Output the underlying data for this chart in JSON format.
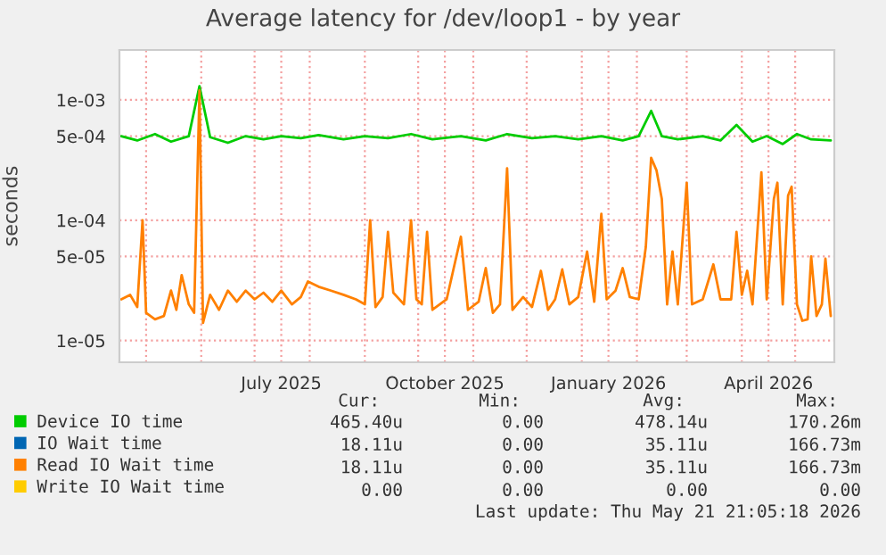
{
  "chart_data": {
    "type": "line",
    "title": "Average latency for /dev/loop1 - by year",
    "ylabel": "seconds",
    "log": "y",
    "grid": true,
    "legend": "bottom",
    "line_style": "solid",
    "marker": "none",
    "xlim": [
      "2025-04-16",
      "2026-05-23"
    ],
    "xticks": [
      {
        "value": "2025-05-01",
        "label": null
      },
      {
        "value": "2025-06-01",
        "label": null
      },
      {
        "value": "2025-07-01",
        "label": null
      },
      {
        "value": "2025-08-01",
        "label": null
      },
      {
        "value": "2025-09-01",
        "label": null
      },
      {
        "value": "2025-10-01",
        "label": null
      },
      {
        "value": "2025-11-01",
        "label": null
      },
      {
        "value": "2025-12-01",
        "label": null
      },
      {
        "value": "2026-01-01",
        "label": null
      },
      {
        "value": "2026-02-01",
        "label": null
      },
      {
        "value": "2026-03-01",
        "label": null
      },
      {
        "value": "2026-04-01",
        "label": null
      },
      {
        "value": "2026-05-01",
        "label": null
      },
      {
        "value": "2025-07-16",
        "label": "July 2025"
      },
      {
        "value": "2025-10-16",
        "label": "October 2025"
      },
      {
        "value": "2026-01-16",
        "label": "January 2026"
      },
      {
        "value": "2026-04-16",
        "label": "April 2026"
      }
    ],
    "ylim": [
      6.6e-06,
      0.0026
    ],
    "yticks": [
      {
        "value": 1e-05,
        "label": "1e-05"
      },
      {
        "value": 5e-05,
        "label": "5e-05"
      },
      {
        "value": 0.0001,
        "label": "1e-04"
      },
      {
        "value": 0.0005,
        "label": "5e-04"
      },
      {
        "value": 0.001,
        "label": "1e-03"
      }
    ],
    "series": [
      {
        "name": "Device IO time",
        "color": "#00cc00",
        "x": [
          "2025-04-17",
          "2025-04-26",
          "2025-05-06",
          "2025-05-15",
          "2025-05-25",
          "2025-05-31",
          "2025-06-06",
          "2025-06-16",
          "2025-06-26",
          "2025-07-06",
          "2025-07-16",
          "2025-07-27",
          "2025-08-06",
          "2025-08-20",
          "2025-09-01",
          "2025-09-14",
          "2025-09-27",
          "2025-10-09",
          "2025-10-25",
          "2025-11-08",
          "2025-11-20",
          "2025-12-04",
          "2025-12-17",
          "2025-12-30",
          "2026-01-12",
          "2026-01-24",
          "2026-02-02",
          "2026-02-09",
          "2026-02-15",
          "2026-02-24",
          "2026-03-10",
          "2026-03-20",
          "2026-03-29",
          "2026-04-07",
          "2026-04-15",
          "2026-04-24",
          "2026-05-02",
          "2026-05-10",
          "2026-05-21"
        ],
        "values": [
          0.0005,
          0.00046,
          0.00052,
          0.00045,
          0.0005,
          0.0013,
          0.00049,
          0.00044,
          0.0005,
          0.00047,
          0.0005,
          0.00048,
          0.00051,
          0.00047,
          0.0005,
          0.00048,
          0.00052,
          0.00047,
          0.0005,
          0.00046,
          0.00052,
          0.00048,
          0.0005,
          0.00047,
          0.0005,
          0.00046,
          0.0005,
          0.00081,
          0.0005,
          0.00047,
          0.0005,
          0.00046,
          0.00062,
          0.00045,
          0.0005,
          0.00043,
          0.00052,
          0.00047,
          0.00046
        ]
      },
      {
        "name": "IO Wait time",
        "color": "#0066b3",
        "values": [
          null
        ]
      },
      {
        "name": "Read IO Wait time",
        "color": "#ff8000",
        "x": [
          "2025-04-17",
          "2025-04-22",
          "2025-04-26",
          "2025-04-29",
          "2025-05-01",
          "2025-05-06",
          "2025-05-11",
          "2025-05-15",
          "2025-05-18",
          "2025-05-21",
          "2025-05-25",
          "2025-05-28",
          "2025-05-31",
          "2025-06-02",
          "2025-06-06",
          "2025-06-11",
          "2025-06-16",
          "2025-06-21",
          "2025-06-26",
          "2025-07-01",
          "2025-07-06",
          "2025-07-11",
          "2025-07-16",
          "2025-07-22",
          "2025-07-27",
          "2025-07-31",
          "2025-08-06",
          "2025-08-13",
          "2025-08-20",
          "2025-08-27",
          "2025-09-01",
          "2025-09-04",
          "2025-09-07",
          "2025-09-11",
          "2025-09-14",
          "2025-09-17",
          "2025-09-23",
          "2025-09-27",
          "2025-09-30",
          "2025-10-03",
          "2025-10-06",
          "2025-10-09",
          "2025-10-17",
          "2025-10-25",
          "2025-10-29",
          "2025-11-04",
          "2025-11-08",
          "2025-11-12",
          "2025-11-16",
          "2025-11-20",
          "2025-11-23",
          "2025-11-29",
          "2025-12-04",
          "2025-12-09",
          "2025-12-13",
          "2025-12-17",
          "2025-12-21",
          "2025-12-25",
          "2025-12-30",
          "2026-01-04",
          "2026-01-08",
          "2026-01-12",
          "2026-01-15",
          "2026-01-20",
          "2026-01-24",
          "2026-01-28",
          "2026-02-02",
          "2026-02-06",
          "2026-02-09",
          "2026-02-12",
          "2026-02-15",
          "2026-02-18",
          "2026-02-21",
          "2026-02-24",
          "2026-03-01",
          "2026-03-04",
          "2026-03-10",
          "2026-03-16",
          "2026-03-20",
          "2026-03-26",
          "2026-03-29",
          "2026-04-01",
          "2026-04-04",
          "2026-04-07",
          "2026-04-12",
          "2026-04-15",
          "2026-04-19",
          "2026-04-21",
          "2026-04-24",
          "2026-04-27",
          "2026-04-29",
          "2026-05-02",
          "2026-05-05",
          "2026-05-08",
          "2026-05-10",
          "2026-05-13",
          "2026-05-16",
          "2026-05-18",
          "2026-05-21"
        ],
        "values": [
          2.2e-05,
          2.4e-05,
          1.9e-05,
          0.0001,
          1.7e-05,
          1.5e-05,
          1.6e-05,
          2.6e-05,
          1.8e-05,
          3.5e-05,
          2e-05,
          1.7e-05,
          0.0012,
          1.4e-05,
          2.4e-05,
          1.8e-05,
          2.6e-05,
          2.1e-05,
          2.6e-05,
          2.2e-05,
          2.5e-05,
          2.1e-05,
          2.6e-05,
          2e-05,
          2.3e-05,
          3.1e-05,
          2.8e-05,
          2.6e-05,
          2.4e-05,
          2.2e-05,
          2e-05,
          0.0001,
          1.9e-05,
          2.3e-05,
          8e-05,
          2.5e-05,
          2e-05,
          0.0001,
          2.2e-05,
          2e-05,
          8e-05,
          1.8e-05,
          2.2e-05,
          7.3e-05,
          1.8e-05,
          2.1e-05,
          4e-05,
          1.7e-05,
          2e-05,
          0.00027,
          1.8e-05,
          2.3e-05,
          1.9e-05,
          3.8e-05,
          1.8e-05,
          2.2e-05,
          3.9e-05,
          2e-05,
          2.3e-05,
          5.5e-05,
          2.1e-05,
          0.000113,
          2.2e-05,
          2.6e-05,
          4e-05,
          2.3e-05,
          2.2e-05,
          6e-05,
          0.00033,
          0.00026,
          0.00015,
          2e-05,
          5.5e-05,
          2e-05,
          0.000205,
          2e-05,
          2.2e-05,
          4.3e-05,
          2.2e-05,
          2.2e-05,
          8e-05,
          2.4e-05,
          3.8e-05,
          2e-05,
          0.00025,
          2.2e-05,
          0.00015,
          0.000205,
          2e-05,
          0.00016,
          0.00019,
          2e-05,
          1.46e-05,
          1.5e-05,
          5e-05,
          1.6e-05,
          2e-05,
          4.8e-05,
          1.6e-05
        ]
      },
      {
        "name": "Write IO Wait time",
        "color": "#ffcc00",
        "values": [
          null
        ]
      }
    ],
    "annotations": [
      "Cur:",
      "Min:",
      "Avg:",
      "Max:",
      "465.40u",
      "0.00",
      "478.14u",
      "170.26m",
      "18.11u",
      "0.00",
      "35.11u",
      "166.73m",
      "18.11u",
      "0.00",
      "35.11u",
      "166.73m",
      "0.00",
      "0.00",
      "0.00",
      "0.00",
      "Last update: Thu May 21 21:05:18 2026"
    ]
  }
}
